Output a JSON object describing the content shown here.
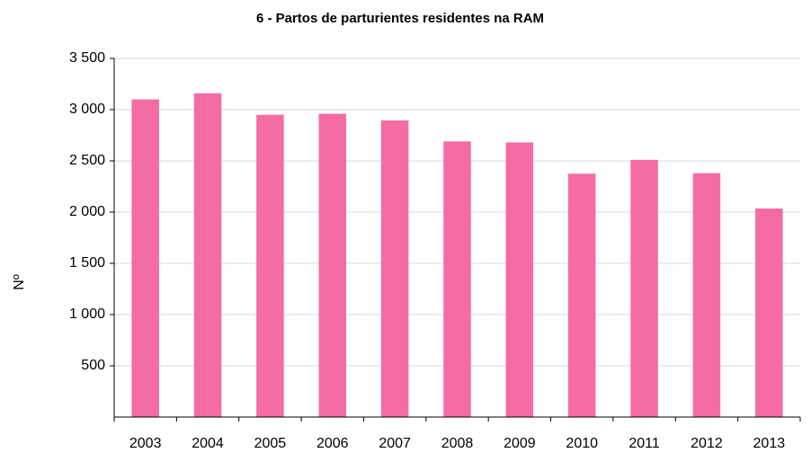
{
  "chart_data": {
    "type": "bar",
    "title": "6 - Partos de parturientes residentes na RAM",
    "y_label": "Nº",
    "categories": [
      "2003",
      "2004",
      "2005",
      "2006",
      "2007",
      "2008",
      "2009",
      "2010",
      "2011",
      "2012",
      "2013"
    ],
    "values": [
      3100,
      3160,
      2950,
      2960,
      2895,
      2690,
      2680,
      2375,
      2510,
      2380,
      2035
    ],
    "color": "#f56ca4",
    "ylim": [
      0,
      3500
    ],
    "yticks": [
      500,
      {
        "value": 1000,
        "label": "1 000"
      },
      {
        "value": 1500,
        "label": "1 500"
      },
      {
        "value": 2000,
        "label": "2 000"
      },
      {
        "value": 2500,
        "label": "2 500"
      },
      {
        "value": 3000,
        "label": "3 000"
      },
      {
        "value": 3500,
        "label": "3 500"
      }
    ],
    "grid": true
  }
}
